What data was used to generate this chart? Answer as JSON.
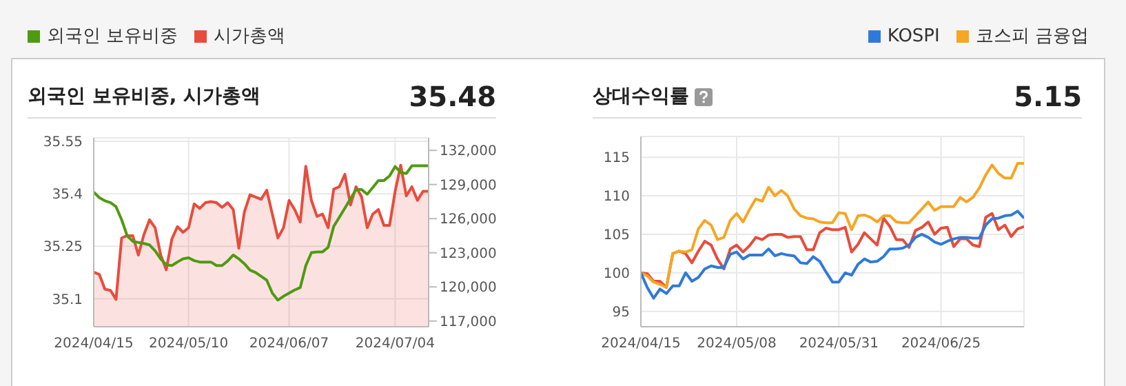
{
  "chart_data": [
    {
      "type": "line",
      "title": "외국인 보유비중, 시가총액",
      "annotations": [
        "35.48"
      ],
      "legend": "top left",
      "grid": true,
      "categories": [
        "2024/04/15",
        null,
        null,
        null,
        null,
        null,
        null,
        null,
        null,
        null,
        null,
        null,
        null,
        null,
        null,
        null,
        null,
        "2024/05/10",
        null,
        null,
        null,
        null,
        null,
        null,
        null,
        null,
        null,
        null,
        null,
        null,
        null,
        null,
        null,
        null,
        null,
        "2024/06/07",
        null,
        null,
        null,
        null,
        null,
        null,
        null,
        null,
        null,
        null,
        null,
        null,
        null,
        null,
        null,
        null,
        null,
        null,
        "2024/07/04",
        null,
        null,
        null,
        null,
        null,
        null
      ],
      "ylim": [
        35.02,
        35.56
      ],
      "yticks": [
        35.1,
        35.25,
        35.4,
        35.55
      ],
      "y2lim": [
        116500,
        133100
      ],
      "y2ticks": [
        {
          "value": 117000,
          "label": "117,000"
        },
        {
          "value": 120000,
          "label": "120,000"
        },
        {
          "value": 123000,
          "label": "123,000"
        },
        {
          "value": 126000,
          "label": "126,000"
        },
        {
          "value": 129000,
          "label": "129,000"
        },
        {
          "value": 132000,
          "label": "132,000"
        }
      ],
      "series": [
        {
          "name": "시가총액",
          "type": "area",
          "axis": "y2",
          "color": "#e84c3d",
          "values": [
            121300,
            121100,
            119800,
            119700,
            118900,
            124300,
            124500,
            124500,
            122800,
            124600,
            125900,
            125200,
            122800,
            121500,
            124200,
            125300,
            124800,
            125200,
            127300,
            126900,
            127400,
            127500,
            127400,
            127000,
            127400,
            126800,
            123400,
            126600,
            128100,
            127900,
            127700,
            128500,
            126400,
            124300,
            125200,
            127600,
            126800,
            125700,
            130600,
            127600,
            126200,
            126400,
            125200,
            128600,
            128800,
            129900,
            127200,
            128800,
            127900,
            125200,
            126400,
            126800,
            125400,
            125400,
            128400,
            130700,
            128000,
            128800,
            127600,
            128400,
            128400
          ]
        },
        {
          "name": "외국인 보유비중",
          "color": "#4f9a12",
          "values": [
            35.405,
            35.389,
            35.38,
            35.375,
            35.363,
            35.326,
            35.28,
            35.264,
            35.261,
            35.258,
            35.254,
            35.237,
            35.214,
            35.197,
            35.195,
            35.205,
            35.214,
            35.217,
            35.209,
            35.205,
            35.205,
            35.205,
            35.195,
            35.195,
            35.208,
            35.225,
            35.214,
            35.2,
            35.182,
            35.175,
            35.164,
            35.153,
            35.116,
            35.096,
            35.107,
            35.116,
            35.125,
            35.132,
            35.195,
            35.232,
            35.234,
            35.234,
            35.247,
            35.307,
            35.333,
            35.359,
            35.386,
            35.412,
            35.412,
            35.399,
            35.418,
            35.438,
            35.438,
            35.451,
            35.478,
            35.461,
            35.458,
            35.48,
            35.48,
            35.48,
            35.48
          ]
        }
      ]
    },
    {
      "type": "line",
      "title": "상대수익률",
      "annotations": [
        "5.15"
      ],
      "legend": "top right",
      "grid": true,
      "categories": [
        "2024/04/15",
        null,
        null,
        null,
        null,
        null,
        null,
        null,
        null,
        null,
        null,
        null,
        null,
        null,
        null,
        "2024/05/08",
        null,
        null,
        null,
        null,
        null,
        null,
        null,
        null,
        null,
        null,
        null,
        null,
        null,
        null,
        null,
        "2024/05/31",
        null,
        null,
        null,
        null,
        null,
        null,
        null,
        null,
        null,
        null,
        null,
        null,
        null,
        null,
        null,
        "2024/06/25",
        null,
        null,
        null,
        null,
        null,
        null,
        null,
        null,
        null,
        null,
        null,
        null,
        null
      ],
      "ylim": [
        93,
        117.7
      ],
      "yticks": [
        95,
        100,
        105,
        110,
        115
      ],
      "series": [
        {
          "color": "#e84c3d",
          "values": [
            100.0,
            99.9,
            98.9,
            98.9,
            98.1,
            102.5,
            102.8,
            102.5,
            101.3,
            102.8,
            104.1,
            103.6,
            101.8,
            100.5,
            103.1,
            103.6,
            102.7,
            103.5,
            104.6,
            104.3,
            104.9,
            105.0,
            105.0,
            104.6,
            104.7,
            104.7,
            103.0,
            103.0,
            105.2,
            105.8,
            105.6,
            105.6,
            105.9,
            102.7,
            103.7,
            105.2,
            104.4,
            103.6,
            107.1,
            106.0,
            104.3,
            104.3,
            103.3,
            105.5,
            105.9,
            106.6,
            105.0,
            105.8,
            105.9,
            103.4,
            104.4,
            104.4,
            103.6,
            103.4,
            107.2,
            107.7,
            105.6,
            106.2,
            104.7,
            105.7,
            106.0
          ]
        },
        {
          "name": "코스피 금융업",
          "color": "#f5a623",
          "values": [
            100.0,
            99.6,
            98.8,
            98.5,
            98.1,
            102.5,
            102.8,
            102.7,
            103.0,
            105.7,
            106.8,
            106.2,
            104.3,
            104.6,
            106.8,
            107.7,
            106.6,
            108.2,
            109.6,
            109.3,
            111.1,
            110.0,
            110.7,
            110.0,
            108.3,
            107.4,
            107.1,
            107.0,
            106.6,
            106.5,
            106.5,
            107.8,
            107.7,
            105.6,
            107.4,
            107.5,
            107.2,
            106.6,
            107.4,
            107.4,
            106.6,
            106.5,
            106.5,
            107.4,
            108.3,
            109.2,
            108.1,
            108.6,
            108.6,
            108.6,
            109.8,
            109.2,
            109.8,
            111.0,
            112.7,
            114.0,
            112.9,
            112.3,
            112.3,
            114.2,
            114.2
          ]
        },
        {
          "name": "KOSPI",
          "color": "#2f7ad9",
          "values": [
            100.0,
            98.1,
            96.7,
            97.9,
            97.3,
            98.3,
            98.3,
            100.0,
            98.9,
            99.4,
            100.5,
            100.9,
            100.7,
            100.7,
            102.4,
            102.7,
            101.8,
            102.3,
            102.3,
            102.3,
            103.1,
            102.2,
            102.5,
            102.3,
            102.2,
            101.3,
            101.2,
            102.1,
            101.5,
            100.1,
            98.8,
            98.8,
            100.0,
            99.7,
            101.1,
            101.8,
            101.4,
            101.5,
            102.1,
            103.1,
            103.1,
            103.2,
            103.6,
            104.6,
            105.0,
            104.6,
            104.0,
            103.7,
            104.1,
            104.4,
            104.6,
            104.6,
            104.5,
            104.5,
            106.2,
            107.0,
            107.1,
            107.4,
            107.5,
            108.0,
            107.1
          ]
        }
      ]
    }
  ]
}
